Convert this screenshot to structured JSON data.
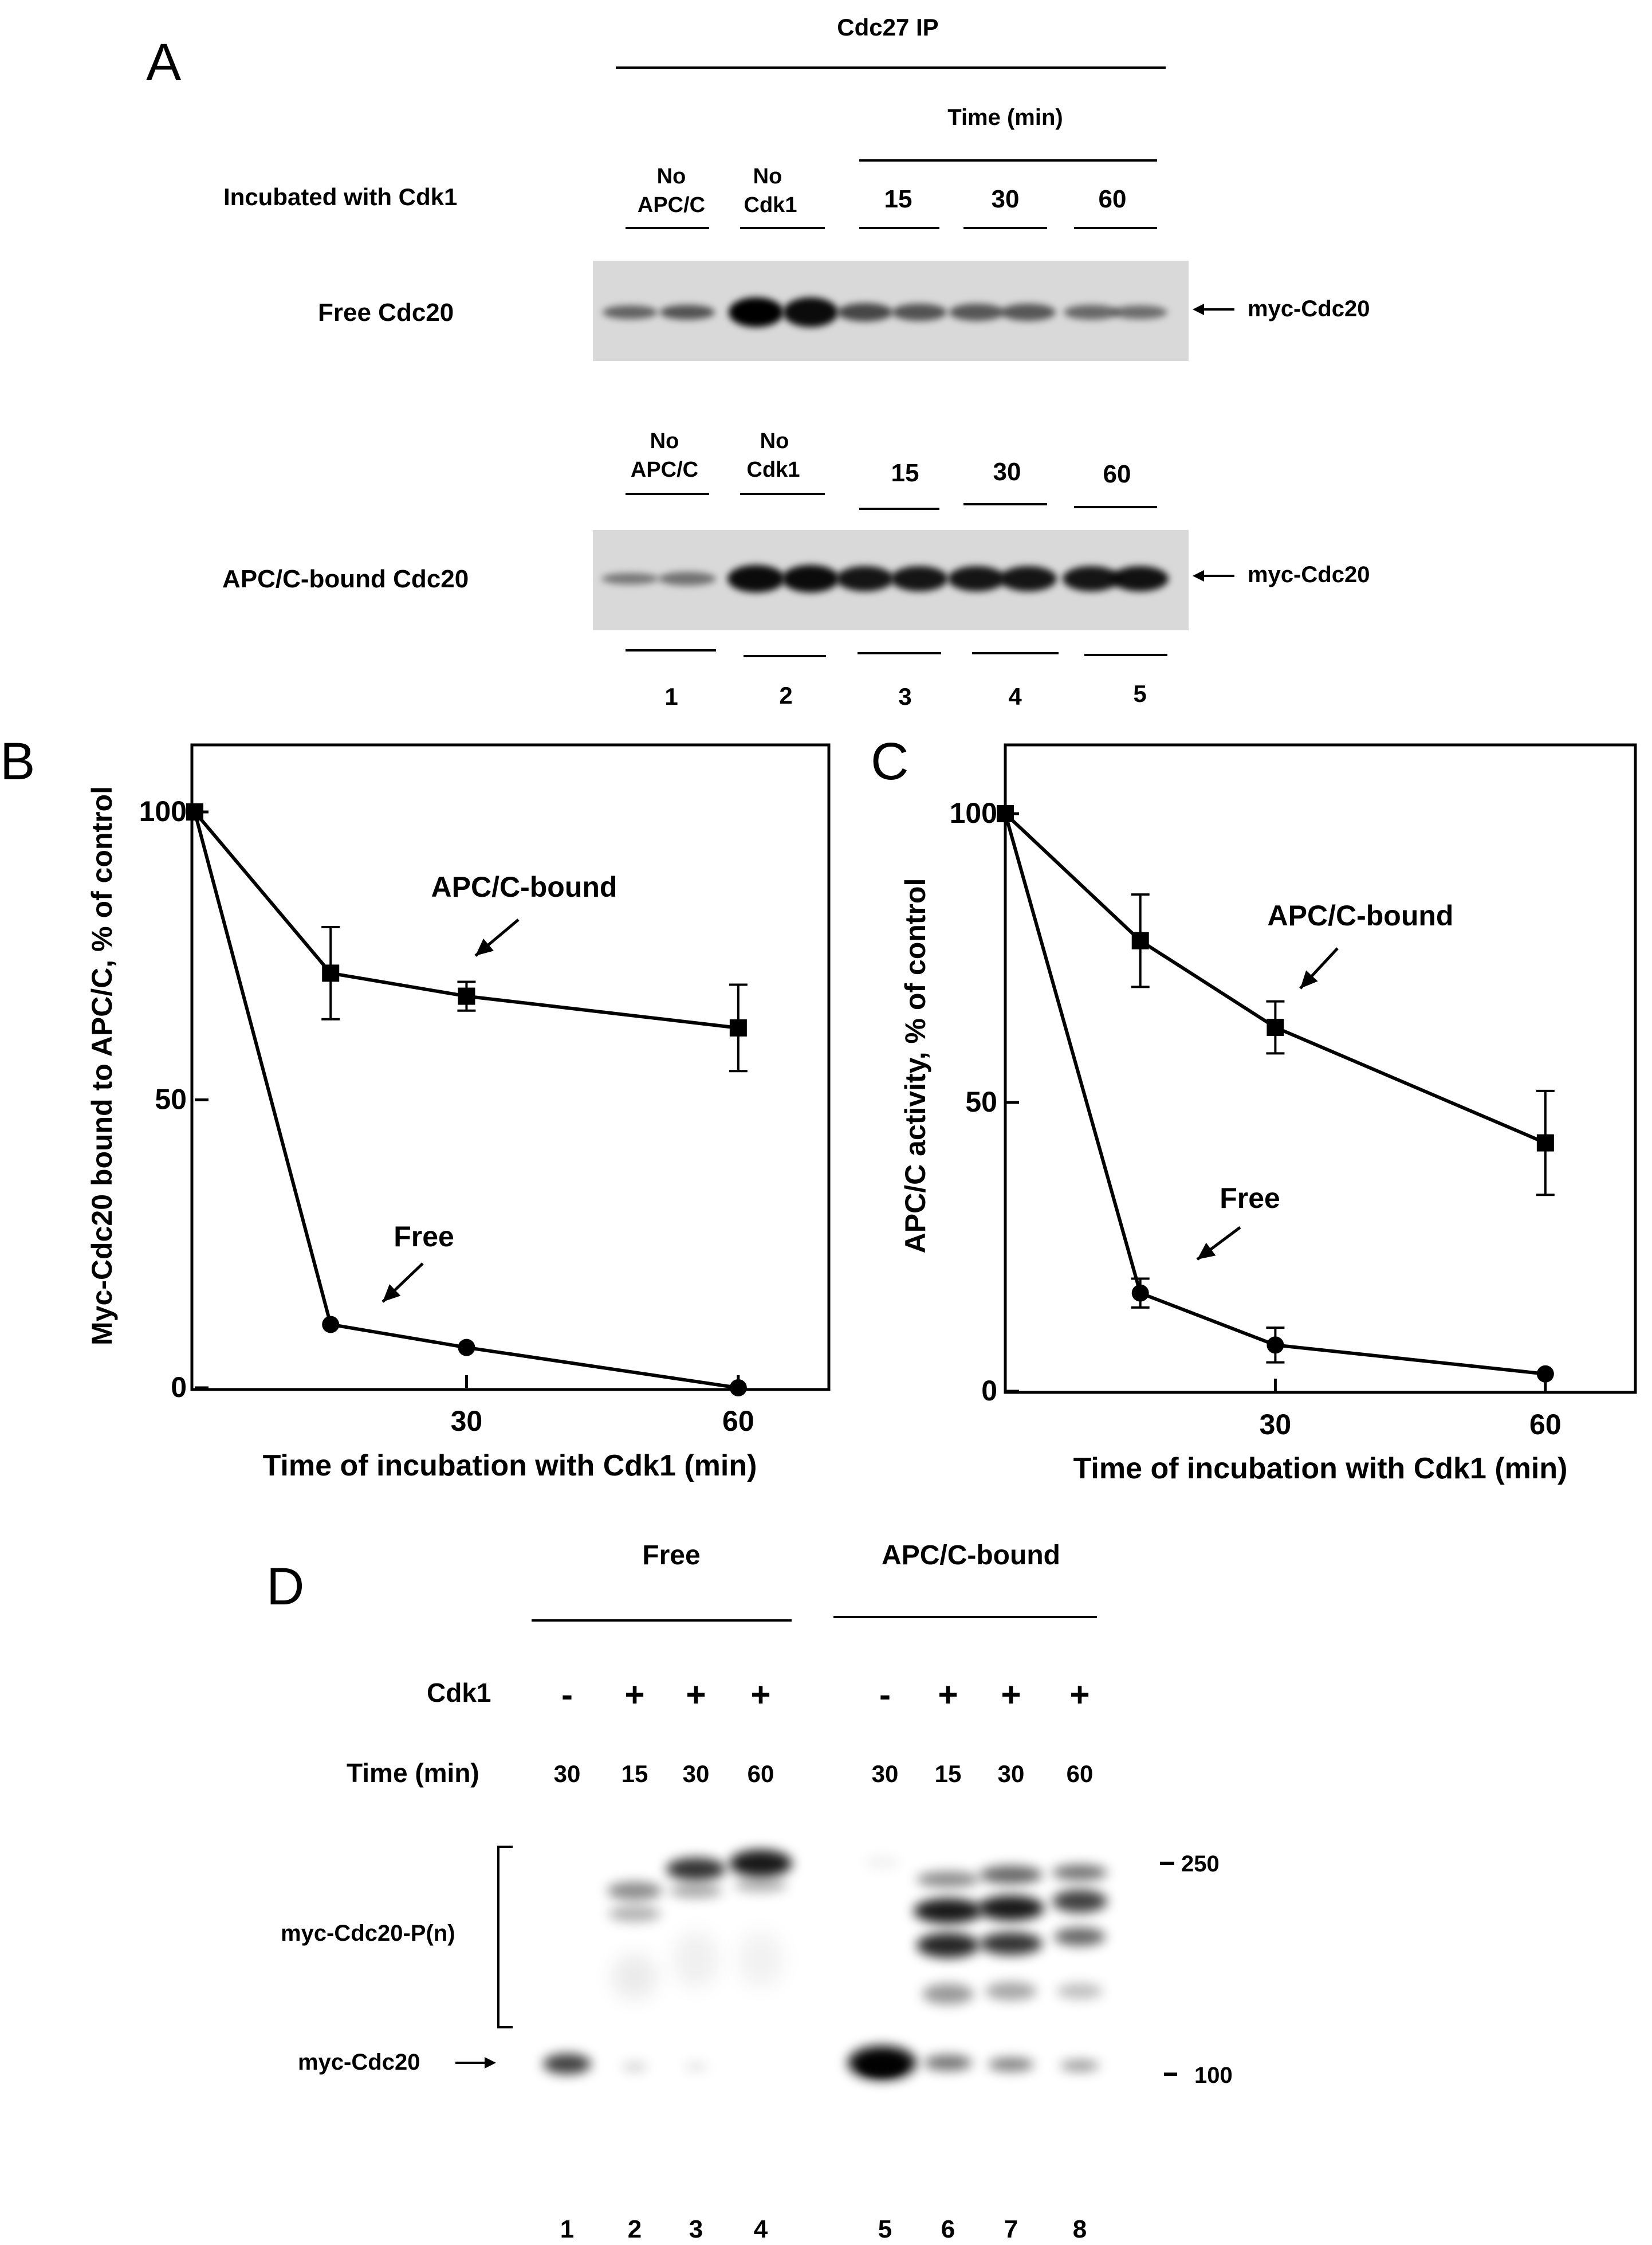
{
  "panel_a": {
    "letter": "A",
    "header": "Cdc27 IP",
    "time_header": "Time (min)",
    "row_label_incubated": "Incubated with Cdk1",
    "col_no_apc": [
      "No",
      "APC/C"
    ],
    "col_no_cdk1": [
      "No",
      "Cdk1"
    ],
    "times": [
      "15",
      "30",
      "60"
    ],
    "blot1_label": "Free Cdc20",
    "blot2_label": "APC/C-bound Cdc20",
    "band_label": "myc-Cdc20",
    "lanes": [
      "1",
      "2",
      "3",
      "4",
      "5"
    ]
  },
  "chart_data": [
    {
      "type": "line",
      "panel": "B",
      "xlabel": "Time of incubation with Cdk1 (min)",
      "ylabel": "Myc-Cdc20 bound to APC/C, % of control",
      "xlim": [
        0,
        70
      ],
      "ylim": [
        0,
        100
      ],
      "xticks": [
        30,
        60
      ],
      "yticks": [
        0,
        50,
        100
      ],
      "grid": false,
      "series": [
        {
          "name": "APC/C-bound",
          "marker": "square",
          "x": [
            0,
            15,
            30,
            60
          ],
          "y": [
            100,
            72,
            68,
            62.5
          ],
          "err": [
            0,
            8,
            2.5,
            7.5
          ]
        },
        {
          "name": "Free",
          "marker": "circle",
          "x": [
            0,
            15,
            30,
            60
          ],
          "y": [
            100,
            11,
            7,
            0
          ],
          "err": [
            0,
            0,
            0,
            0
          ]
        }
      ],
      "annotations": [
        "APC/C-bound",
        "Free"
      ]
    },
    {
      "type": "line",
      "panel": "C",
      "xlabel": "Time of incubation with Cdk1 (min)",
      "ylabel": "APC/C activity, % of control",
      "xlim": [
        0,
        70
      ],
      "ylim": [
        0,
        100
      ],
      "xticks": [
        30,
        60
      ],
      "yticks": [
        0,
        50,
        100
      ],
      "grid": false,
      "series": [
        {
          "name": "APC/C-bound",
          "marker": "square",
          "x": [
            0,
            15,
            30,
            60
          ],
          "y": [
            100,
            78,
            63,
            43
          ],
          "err": [
            0,
            8,
            4.5,
            9
          ]
        },
        {
          "name": "Free",
          "marker": "circle",
          "x": [
            0,
            15,
            30,
            60
          ],
          "y": [
            100,
            17,
            8,
            3
          ],
          "err": [
            0,
            2.5,
            3,
            0
          ]
        }
      ],
      "annotations": [
        "APC/C-bound",
        "Free"
      ]
    }
  ],
  "panel_d": {
    "letter": "D",
    "group_free": "Free",
    "group_bound": "APC/C-bound",
    "row_cdk1": "Cdk1",
    "row_time": "Time (min)",
    "cdk1_signs": [
      "-",
      "+",
      "+",
      "+",
      "-",
      "+",
      "+",
      "+"
    ],
    "times": [
      "30",
      "15",
      "30",
      "60",
      "30",
      "15",
      "30",
      "60"
    ],
    "label_phospho": "myc-Cdc20-P(n)",
    "label_unphospho": "myc-Cdc20",
    "mw_markers": [
      "250",
      "100"
    ],
    "lanes": [
      "1",
      "2",
      "3",
      "4",
      "5",
      "6",
      "7",
      "8"
    ]
  }
}
